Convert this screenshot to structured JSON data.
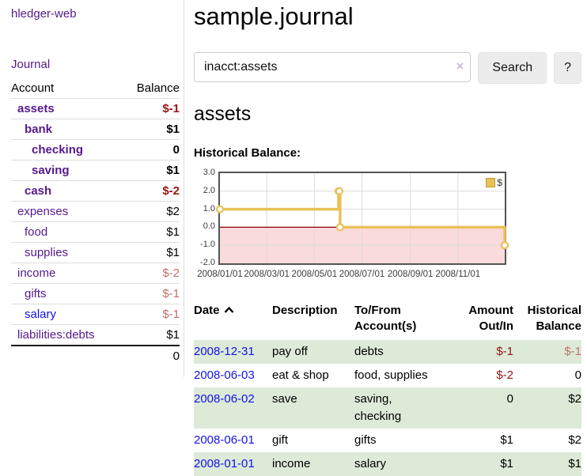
{
  "sidebar": {
    "app_title": "hledger-web",
    "journal_link": "Journal",
    "accounts_header": {
      "account": "Account",
      "balance": "Balance"
    },
    "accounts": [
      {
        "name": "assets",
        "balance": "$-1",
        "depth": 0,
        "strong": true,
        "negative": true,
        "unvisited": false
      },
      {
        "name": "bank",
        "balance": "$1",
        "depth": 1,
        "strong": true,
        "negative": false,
        "unvisited": false
      },
      {
        "name": "checking",
        "balance": "0",
        "depth": 2,
        "strong": true,
        "negative": false,
        "unvisited": false
      },
      {
        "name": "saving",
        "balance": "$1",
        "depth": 2,
        "strong": true,
        "negative": false,
        "unvisited": false
      },
      {
        "name": "cash",
        "balance": "$-2",
        "depth": 1,
        "strong": true,
        "negative": true,
        "unvisited": false
      },
      {
        "name": "expenses",
        "balance": "$2",
        "depth": 0,
        "strong": false,
        "negative": false,
        "unvisited": false
      },
      {
        "name": "food",
        "balance": "$1",
        "depth": 1,
        "strong": false,
        "negative": false,
        "unvisited": false
      },
      {
        "name": "supplies",
        "balance": "$1",
        "depth": 1,
        "strong": false,
        "negative": false,
        "unvisited": false
      },
      {
        "name": "income",
        "balance": "$-2",
        "depth": 0,
        "strong": false,
        "negative": true,
        "unvisited": false
      },
      {
        "name": "gifts",
        "balance": "$-1",
        "depth": 1,
        "strong": false,
        "negative": true,
        "unvisited": false
      },
      {
        "name": "salary",
        "balance": "$-1",
        "depth": 1,
        "strong": false,
        "negative": true,
        "unvisited": true
      },
      {
        "name": "liabilities:debts",
        "balance": "$1",
        "depth": 0,
        "strong": false,
        "negative": false,
        "unvisited": false
      }
    ],
    "total": "0"
  },
  "main": {
    "title": "sample.journal",
    "search": {
      "value": "inacct:assets",
      "clear_icon": "×",
      "button_label": "Search",
      "help_label": "?"
    },
    "account_heading": "assets"
  },
  "chart_data": {
    "type": "line",
    "title": "Historical Balance:",
    "step": true,
    "xlim_days": [
      0,
      365
    ],
    "ylim": [
      -2,
      3
    ],
    "grid": true,
    "legend_position": "top-right",
    "x_ticks": [
      {
        "label": "2008/01/01",
        "day": 0
      },
      {
        "label": "2008/03/01",
        "day": 60
      },
      {
        "label": "2008/05/01",
        "day": 121
      },
      {
        "label": "2008/07/01",
        "day": 182
      },
      {
        "label": "2008/09/01",
        "day": 244
      },
      {
        "label": "2008/11/01",
        "day": 305
      }
    ],
    "y_ticks": [
      {
        "label": "3.0",
        "value": 3
      },
      {
        "label": "2.0",
        "value": 2
      },
      {
        "label": "1.0",
        "value": 1
      },
      {
        "label": "0.0",
        "value": 0
      },
      {
        "label": "-1.0",
        "value": -1
      },
      {
        "label": "-2.0",
        "value": -2
      }
    ],
    "series": [
      {
        "name": "$",
        "points": [
          {
            "date": "2008-01-01",
            "day": 0,
            "value": 1
          },
          {
            "date": "2008-06-01",
            "day": 152,
            "value": 2
          },
          {
            "date": "2008-06-02",
            "day": 153,
            "value": 2
          },
          {
            "date": "2008-06-03",
            "day": 154,
            "value": 0
          },
          {
            "date": "2008-12-31",
            "day": 365,
            "value": -1
          }
        ]
      }
    ],
    "colors": {
      "line": "#e8c157",
      "marker_fill": "#ffffff",
      "legend_fill": "#e8c157",
      "negative_region": "#fadbdb",
      "zero_line": "#8f0000",
      "grid": "#dcdcdc",
      "border": "#545454"
    }
  },
  "register": {
    "columns": [
      {
        "line1": "Date",
        "line2": "",
        "align": "left",
        "sorted_asc": true
      },
      {
        "line1": "Description",
        "line2": "",
        "align": "left",
        "sorted_asc": false
      },
      {
        "line1": "To/From",
        "line2": "Account(s)",
        "align": "left",
        "sorted_asc": false
      },
      {
        "line1": "Amount",
        "line2": "Out/In",
        "align": "right",
        "sorted_asc": false
      },
      {
        "line1": "Historical",
        "line2": "Balance",
        "align": "right",
        "sorted_asc": false
      }
    ],
    "rows": [
      {
        "date": "2008-12-31",
        "description": "pay off",
        "accounts": "debts",
        "amount": "$-1",
        "amount_negative": true,
        "balance": "$-1",
        "balance_negative": true,
        "highlighted": true
      },
      {
        "date": "2008-06-03",
        "description": "eat & shop",
        "accounts": "food, supplies",
        "amount": "$-2",
        "amount_negative": true,
        "balance": "0",
        "balance_negative": false,
        "highlighted": false
      },
      {
        "date": "2008-06-02",
        "description": "save",
        "accounts": "saving, checking",
        "amount": "0",
        "amount_negative": false,
        "balance": "$2",
        "balance_negative": false,
        "highlighted": true
      },
      {
        "date": "2008-06-01",
        "description": "gift",
        "accounts": "gifts",
        "amount": "$1",
        "amount_negative": false,
        "balance": "$2",
        "balance_negative": false,
        "highlighted": false
      },
      {
        "date": "2008-01-01",
        "description": "income",
        "accounts": "salary",
        "amount": "$1",
        "amount_negative": false,
        "balance": "$1",
        "balance_negative": false,
        "highlighted": true
      }
    ]
  },
  "colors": {
    "link_visited_purple": "#551a8b",
    "link_blue": "#1414e0",
    "negative_strong_red": "#991414",
    "negative_light_red": "#c0706c",
    "row_highlight_green": "#ddead8",
    "button_gray": "#ececec",
    "divider_gray": "#dddddd"
  }
}
